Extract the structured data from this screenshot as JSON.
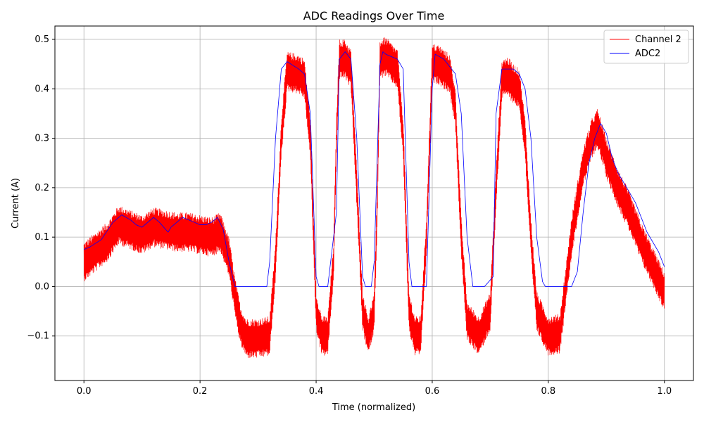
{
  "chart_data": {
    "type": "line",
    "title": "ADC Readings Over Time",
    "xlabel": "Time (normalized)",
    "ylabel": "Current (A)",
    "xlim": [
      -0.05,
      1.05
    ],
    "ylim": [
      -0.19,
      0.527
    ],
    "xticks": [
      0.0,
      0.2,
      0.4,
      0.6,
      0.8,
      1.0
    ],
    "xtick_labels": [
      "0.0",
      "0.2",
      "0.4",
      "0.6",
      "0.8",
      "1.0"
    ],
    "yticks": [
      -0.1,
      0.0,
      0.1,
      0.2,
      0.3,
      0.4,
      0.5
    ],
    "ytick_labels": [
      "−0.1",
      "0.0",
      "0.1",
      "0.2",
      "0.3",
      "0.4",
      "0.5"
    ],
    "grid": true,
    "legend_position": "top-right",
    "series": [
      {
        "name": "Channel 2",
        "color": "#ff0000",
        "noise_band": 0.04,
        "x": [
          0.0,
          0.02,
          0.04,
          0.06,
          0.08,
          0.1,
          0.12,
          0.14,
          0.16,
          0.18,
          0.2,
          0.22,
          0.235,
          0.25,
          0.26,
          0.27,
          0.28,
          0.3,
          0.32,
          0.33,
          0.34,
          0.35,
          0.37,
          0.38,
          0.39,
          0.4,
          0.41,
          0.42,
          0.43,
          0.435,
          0.44,
          0.45,
          0.46,
          0.47,
          0.48,
          0.49,
          0.5,
          0.505,
          0.51,
          0.52,
          0.54,
          0.55,
          0.56,
          0.57,
          0.58,
          0.59,
          0.6,
          0.61,
          0.63,
          0.64,
          0.65,
          0.66,
          0.68,
          0.7,
          0.71,
          0.72,
          0.73,
          0.74,
          0.75,
          0.76,
          0.77,
          0.78,
          0.8,
          0.82,
          0.83,
          0.84,
          0.86,
          0.875,
          0.885,
          0.89,
          0.9,
          0.92,
          0.94,
          0.96,
          0.98,
          1.0
        ],
        "y": [
          0.05,
          0.07,
          0.09,
          0.125,
          0.115,
          0.105,
          0.12,
          0.115,
          0.11,
          0.11,
          0.105,
          0.1,
          0.11,
          0.06,
          -0.02,
          -0.08,
          -0.105,
          -0.105,
          -0.1,
          0.05,
          0.3,
          0.435,
          0.43,
          0.42,
          0.3,
          -0.05,
          -0.1,
          -0.1,
          0.05,
          0.3,
          0.46,
          0.46,
          0.44,
          0.2,
          -0.05,
          -0.1,
          -0.05,
          0.15,
          0.46,
          0.465,
          0.44,
          0.3,
          -0.05,
          -0.1,
          -0.1,
          0.1,
          0.45,
          0.45,
          0.43,
          0.36,
          0.1,
          -0.07,
          -0.1,
          -0.05,
          0.2,
          0.42,
          0.425,
          0.41,
          0.4,
          0.3,
          0.1,
          -0.05,
          -0.1,
          -0.095,
          0.0,
          0.1,
          0.24,
          0.3,
          0.32,
          0.3,
          0.26,
          0.2,
          0.15,
          0.09,
          0.04,
          -0.01
        ]
      },
      {
        "name": "ADC2",
        "color": "#0000ff",
        "x": [
          0.0,
          0.01,
          0.03,
          0.05,
          0.065,
          0.08,
          0.09,
          0.1,
          0.11,
          0.12,
          0.13,
          0.145,
          0.15,
          0.16,
          0.17,
          0.18,
          0.19,
          0.2,
          0.21,
          0.22,
          0.23,
          0.24,
          0.25,
          0.26,
          0.3,
          0.315,
          0.32,
          0.33,
          0.34,
          0.35,
          0.37,
          0.38,
          0.39,
          0.4,
          0.405,
          0.41,
          0.42,
          0.435,
          0.44,
          0.45,
          0.46,
          0.47,
          0.48,
          0.485,
          0.49,
          0.495,
          0.5,
          0.51,
          0.515,
          0.52,
          0.54,
          0.55,
          0.56,
          0.565,
          0.57,
          0.59,
          0.6,
          0.605,
          0.62,
          0.64,
          0.65,
          0.66,
          0.67,
          0.69,
          0.705,
          0.71,
          0.72,
          0.74,
          0.75,
          0.76,
          0.77,
          0.78,
          0.79,
          0.795,
          0.84,
          0.85,
          0.86,
          0.87,
          0.88,
          0.89,
          0.9,
          0.91,
          0.92,
          0.93,
          0.95,
          0.97,
          0.99,
          1.0
        ],
        "y": [
          0.075,
          0.08,
          0.095,
          0.13,
          0.145,
          0.135,
          0.125,
          0.12,
          0.13,
          0.14,
          0.13,
          0.11,
          0.12,
          0.13,
          0.14,
          0.135,
          0.13,
          0.125,
          0.125,
          0.13,
          0.14,
          0.115,
          0.05,
          0.0,
          0.0,
          0.0,
          0.05,
          0.3,
          0.44,
          0.455,
          0.44,
          0.43,
          0.35,
          0.02,
          0.0,
          0.0,
          0.0,
          0.15,
          0.46,
          0.475,
          0.46,
          0.3,
          0.02,
          0.0,
          0.0,
          0.0,
          0.05,
          0.45,
          0.475,
          0.47,
          0.46,
          0.44,
          0.05,
          0.0,
          0.0,
          0.0,
          0.4,
          0.47,
          0.46,
          0.43,
          0.35,
          0.1,
          0.0,
          0.0,
          0.02,
          0.35,
          0.44,
          0.44,
          0.43,
          0.4,
          0.3,
          0.1,
          0.01,
          0.0,
          0.0,
          0.03,
          0.15,
          0.25,
          0.3,
          0.33,
          0.31,
          0.26,
          0.23,
          0.21,
          0.17,
          0.11,
          0.07,
          0.04
        ]
      }
    ]
  }
}
